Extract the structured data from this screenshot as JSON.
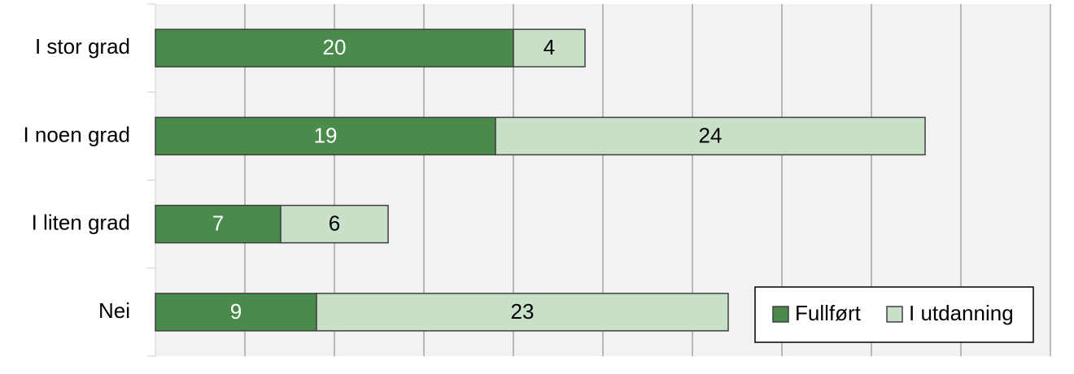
{
  "chart_data": {
    "type": "stacked-bar-horizontal",
    "categories": [
      "I stor grad",
      "I noen grad",
      "I liten grad",
      "Nei"
    ],
    "series": [
      {
        "name": "Fullført",
        "color": "#4a8a4a",
        "values": [
          20,
          19,
          7,
          9
        ]
      },
      {
        "name": "I utdanning",
        "color": "#c8e0c8",
        "values": [
          4,
          24,
          6,
          23
        ]
      }
    ],
    "xlim": [
      0,
      50
    ],
    "xticks": [
      0,
      5,
      10,
      15,
      20,
      25,
      30,
      35,
      40,
      45,
      50
    ],
    "grid": true,
    "legend": "bottom-right"
  }
}
